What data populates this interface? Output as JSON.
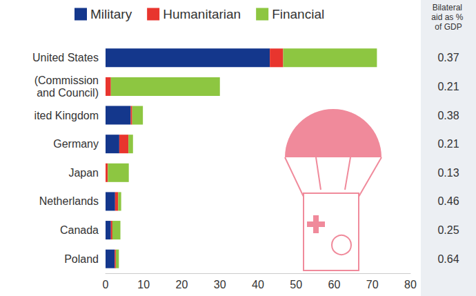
{
  "chart_data": {
    "type": "bar",
    "orientation": "horizontal",
    "stacked": true,
    "grid": false,
    "legend": "top",
    "categories": [
      "United States",
      "(Commission\nand Council)",
      "ited Kingdom",
      "Germany",
      "Japan",
      "Netherlands",
      "Canada",
      "Poland"
    ],
    "series": [
      {
        "name": "Military",
        "color": "#14378c",
        "values": [
          43.1,
          0,
          6.6,
          3.6,
          0,
          2.5,
          1.4,
          2.4
        ]
      },
      {
        "name": "Humanitarian",
        "color": "#e8352e",
        "values": [
          3.5,
          1.4,
          0.4,
          2.4,
          0.6,
          0.8,
          0.4,
          0.3
        ]
      },
      {
        "name": "Financial",
        "color": "#8dc641",
        "values": [
          24.6,
          28.6,
          2.8,
          1.2,
          5.5,
          0.8,
          2.1,
          0.8
        ]
      }
    ],
    "xlim": [
      0,
      80
    ],
    "xticks": [
      0,
      10,
      20,
      30,
      40,
      50,
      60,
      70,
      80
    ],
    "side_column": {
      "title": "Bilateral aid as % of GDP",
      "values": [
        0.37,
        0.21,
        0.38,
        0.21,
        0.13,
        0.46,
        0.25,
        0.64
      ]
    }
  }
}
